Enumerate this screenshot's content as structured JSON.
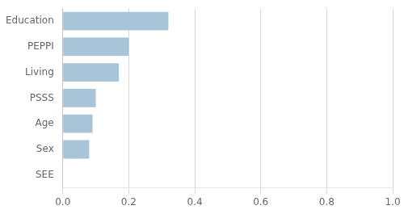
{
  "chart_data": {
    "type": "bar",
    "orientation": "horizontal",
    "categories": [
      "SEE",
      "Sex",
      "Age",
      "PSSS",
      "Living",
      "PEPPI",
      "Education"
    ],
    "values": [
      0.0,
      0.08,
      0.09,
      0.1,
      0.17,
      0.2,
      0.32
    ],
    "color": "#a8c4d8",
    "xlim": [
      0.0,
      1.0
    ],
    "xticks": [
      {
        "value": 0.0,
        "label": "0.0"
      },
      0.2,
      0.4,
      0.6,
      0.8,
      {
        "value": 1.0,
        "label": "1.0"
      }
    ],
    "grid": true
  }
}
